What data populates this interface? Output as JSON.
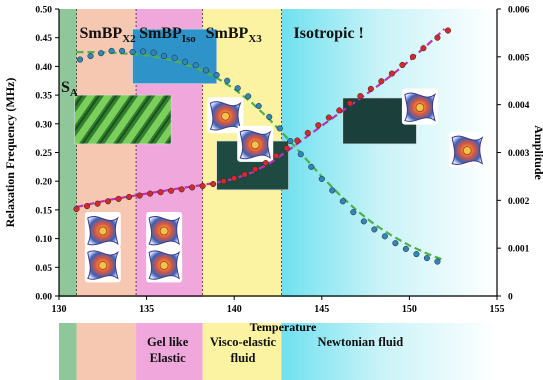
{
  "chart_data": {
    "type": "scatter",
    "xlabel": "Temperature",
    "ylabel": "Relaxation Frequency (MHz)",
    "y2label": "Amplitude",
    "xlim": [
      130,
      155
    ],
    "ylim": [
      0,
      0.5
    ],
    "y2lim": [
      0,
      0.006
    ],
    "xticks": [
      "130",
      "135",
      "140",
      "145",
      "150",
      "155"
    ],
    "yticks": [
      "0.00",
      "0.05",
      "0.10",
      "0.15",
      "0.20",
      "0.25",
      "0.30",
      "0.35",
      "0.40",
      "0.45",
      "0.50"
    ],
    "y2ticks": [
      "0",
      "0.001",
      "0.002",
      "0.003",
      "0.004",
      "0.005",
      "0.006"
    ],
    "phases": [
      {
        "label": "S",
        "sub": "A",
        "from": 130,
        "to": 131,
        "color": "#8fc79a"
      },
      {
        "label": "SmBP",
        "sub": "X2",
        "from": 131,
        "to": 134.4,
        "color": "#f6c8b2"
      },
      {
        "label": "SmBP",
        "sub": "Iso",
        "from": 134.4,
        "to": 138.2,
        "color": "#f0a8dc"
      },
      {
        "label": "SmBP",
        "sub": "X3",
        "from": 138.2,
        "to": 142.7,
        "color": "#fbf3a2"
      },
      {
        "label": "Isotropic !",
        "sub": "",
        "from": 142.7,
        "to": 155,
        "color": "#c6f1f7"
      }
    ],
    "regimes": [
      {
        "lines": [
          "Gel like",
          "Elastic"
        ],
        "x": 136.2
      },
      {
        "lines": [
          "Visco-elastic",
          "fluid"
        ],
        "x": 140.5
      },
      {
        "lines": [
          "Newtonian fluid"
        ],
        "x": 147.2
      }
    ],
    "series": [
      {
        "axis": "left",
        "color": "#2f86b8",
        "x": [
          131.2,
          131.8,
          132.4,
          133.0,
          133.6,
          134.2,
          134.8,
          135.4,
          136.0,
          136.6,
          137.2,
          137.8,
          138.4,
          139.0,
          139.6,
          140.2,
          140.8,
          141.4,
          142.0,
          142.6,
          143.2,
          143.8,
          144.4,
          145.0,
          145.6,
          146.2,
          146.8,
          147.4,
          148.0,
          148.6,
          149.2,
          149.8,
          150.4,
          151.0,
          151.6
        ],
        "values": [
          0.412,
          0.418,
          0.423,
          0.427,
          0.427,
          0.425,
          0.426,
          0.424,
          0.418,
          0.415,
          0.408,
          0.402,
          0.393,
          0.385,
          0.375,
          0.362,
          0.348,
          0.331,
          0.312,
          0.292,
          0.27,
          0.247,
          0.225,
          0.204,
          0.184,
          0.165,
          0.146,
          0.13,
          0.116,
          0.104,
          0.092,
          0.082,
          0.073,
          0.066,
          0.06
        ]
      },
      {
        "axis": "right",
        "color": "#d42a2a",
        "x": [
          131.0,
          131.6,
          132.2,
          132.8,
          133.4,
          134.0,
          134.6,
          135.2,
          135.8,
          136.4,
          137.0,
          137.6,
          138.2,
          138.8,
          139.4,
          140.0,
          140.6,
          141.2,
          141.8,
          142.4,
          143.0,
          143.6,
          144.2,
          144.8,
          145.4,
          146.0,
          146.6,
          147.2,
          147.8,
          148.4,
          149.0,
          149.6,
          150.2,
          150.8,
          151.6,
          152.2
        ],
        "values": [
          0.00182,
          0.00188,
          0.00193,
          0.00198,
          0.00203,
          0.00207,
          0.0021,
          0.00214,
          0.00217,
          0.0022,
          0.00223,
          0.00227,
          0.0023,
          0.00234,
          0.0024,
          0.00246,
          0.00254,
          0.00265,
          0.00278,
          0.00293,
          0.00309,
          0.00325,
          0.00341,
          0.00357,
          0.00373,
          0.00388,
          0.00403,
          0.00418,
          0.00433,
          0.00449,
          0.00465,
          0.00483,
          0.005,
          0.00518,
          0.0054,
          0.00555
        ]
      }
    ],
    "fits": [
      {
        "axis": "left",
        "color": "#4caf50",
        "style": "dashed",
        "x": [
          131.0,
          132.0,
          133.0,
          134.0,
          135.0,
          136.0,
          137.0,
          138.0,
          139.0,
          140.0,
          141.0,
          142.0,
          143.0,
          144.0,
          145.0,
          146.0,
          147.0,
          148.0,
          149.0,
          150.0,
          151.0,
          152.0
        ],
        "values": [
          0.425,
          0.425,
          0.424,
          0.422,
          0.419,
          0.414,
          0.406,
          0.395,
          0.38,
          0.361,
          0.337,
          0.308,
          0.276,
          0.242,
          0.208,
          0.177,
          0.149,
          0.125,
          0.105,
          0.088,
          0.074,
          0.062
        ]
      },
      {
        "axis": "right",
        "color": "#c02fb5",
        "style": "dashed",
        "x": [
          131.0,
          132.0,
          133.0,
          134.0,
          135.0,
          136.0,
          137.0,
          138.0,
          139.0,
          140.0,
          141.0,
          142.0,
          143.0,
          144.0,
          145.0,
          146.0,
          147.0,
          148.0,
          149.0,
          150.0,
          151.0,
          152.0
        ],
        "values": [
          0.00186,
          0.00194,
          0.00202,
          0.00208,
          0.00214,
          0.0022,
          0.00226,
          0.00231,
          0.00237,
          0.00245,
          0.00258,
          0.00277,
          0.00302,
          0.00329,
          0.00356,
          0.00382,
          0.00408,
          0.00434,
          0.00462,
          0.00492,
          0.00524,
          0.00558
        ]
      }
    ],
    "overlays": [
      {
        "name": "texture-green-fan",
        "kind": "texture",
        "color": "#3a8a3a",
        "x": 130.9,
        "y": 0.265,
        "w": 5.5,
        "h": 0.085
      },
      {
        "name": "texture-blue-platelet",
        "kind": "texture",
        "color": "#2e93c9",
        "x": 134.2,
        "y": 0.37,
        "w": 4.8,
        "h": 0.095
      },
      {
        "name": "texture-dark-x3",
        "kind": "texture",
        "color": "#1f4a42",
        "x": 139.0,
        "y": 0.185,
        "w": 4.1,
        "h": 0.085
      },
      {
        "name": "texture-dark-iso",
        "kind": "texture",
        "color": "#1b3f3b",
        "x": 146.2,
        "y": 0.265,
        "w": 4.2,
        "h": 0.08
      },
      {
        "name": "structure-1",
        "kind": "structure",
        "x": 132.5,
        "y": 0.115
      },
      {
        "name": "structure-2",
        "kind": "structure",
        "x": 132.5,
        "y": 0.055
      },
      {
        "name": "structure-3",
        "kind": "structure",
        "x": 136.0,
        "y": 0.115
      },
      {
        "name": "structure-4",
        "kind": "structure",
        "x": 136.0,
        "y": 0.055
      },
      {
        "name": "structure-5",
        "kind": "structure",
        "x": 139.5,
        "y": 0.315
      },
      {
        "name": "structure-6",
        "kind": "structure",
        "x": 141.2,
        "y": 0.265
      },
      {
        "name": "structure-7",
        "kind": "structure",
        "x": 150.6,
        "y": 0.33
      },
      {
        "name": "structure-8",
        "kind": "structure",
        "x": 153.3,
        "y": 0.255
      }
    ]
  }
}
